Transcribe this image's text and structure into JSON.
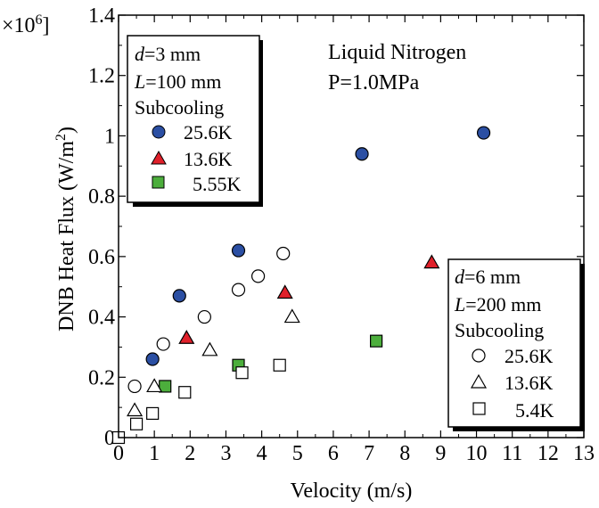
{
  "chart_data": {
    "type": "scatter",
    "xlabel": "Velocity  (m/s)",
    "ylabel": "DNB Heat Flux (W/m",
    "ylabel_sup": "2",
    "ylabel_close": ")",
    "y_multiplier_prefix": "×10",
    "y_multiplier_exp": "6",
    "y_multiplier_suffix": "]",
    "xlim": [
      0,
      13
    ],
    "ylim": [
      0,
      1.4
    ],
    "x_ticks": [
      "0",
      "1",
      "2",
      "3",
      "4",
      "5",
      "6",
      "7",
      "8",
      "9",
      "10",
      "11",
      "12",
      "13"
    ],
    "y_ticks": [
      "0",
      "0.2",
      "0.4",
      "0.6",
      "0.8",
      "1",
      "1.2",
      "1.4"
    ],
    "grid": false,
    "annotation": {
      "line1": "Liquid Nitrogen",
      "line2": "P=1.0MPa"
    },
    "legend_top_left": {
      "d_sym": "d",
      "d_val": "=3 mm",
      "l_sym": "L",
      "l_val": "=100 mm",
      "subtitle": "Subcooling",
      "entries": [
        "25.6K",
        "13.6K",
        "5.55K"
      ]
    },
    "legend_bottom_right": {
      "d_sym": "d",
      "d_val": "=6 mm",
      "l_sym": "L",
      "l_val": "=200 mm",
      "subtitle": "Subcooling",
      "entries": [
        "25.6K",
        "13.6K",
        "5.4K"
      ]
    },
    "series": [
      {
        "name": "25.6K",
        "marker": "circle",
        "filled": true,
        "color": "#2b4fa3",
        "points": [
          [
            0.95,
            0.26
          ],
          [
            1.7,
            0.47
          ],
          [
            3.35,
            0.62
          ],
          [
            6.8,
            0.94
          ],
          [
            10.2,
            1.01
          ]
        ]
      },
      {
        "name": "13.6K",
        "marker": "triangle",
        "filled": true,
        "color": "#e0202a",
        "points": [
          [
            1.9,
            0.33
          ],
          [
            4.65,
            0.48
          ],
          [
            8.75,
            0.58
          ]
        ]
      },
      {
        "name": "5.55K",
        "marker": "square",
        "filled": true,
        "color": "#4cae3c",
        "points": [
          [
            1.3,
            0.17
          ],
          [
            3.35,
            0.24
          ],
          [
            7.2,
            0.32
          ]
        ]
      },
      {
        "name": "25.6K",
        "marker": "circle",
        "filled": false,
        "color": "#000000",
        "points": [
          [
            0.45,
            0.17
          ],
          [
            1.25,
            0.31
          ],
          [
            2.4,
            0.4
          ],
          [
            3.35,
            0.49
          ],
          [
            3.9,
            0.535
          ],
          [
            4.6,
            0.61
          ]
        ]
      },
      {
        "name": "13.6K",
        "marker": "triangle",
        "filled": false,
        "color": "#000000",
        "points": [
          [
            0.45,
            0.09
          ],
          [
            1.0,
            0.17
          ],
          [
            2.55,
            0.29
          ],
          [
            4.85,
            0.4
          ]
        ]
      },
      {
        "name": "5.4K",
        "marker": "square",
        "filled": false,
        "color": "#000000",
        "points": [
          [
            0.0,
            0.0
          ],
          [
            0.5,
            0.045
          ],
          [
            0.95,
            0.08
          ],
          [
            1.85,
            0.15
          ],
          [
            3.45,
            0.215
          ],
          [
            4.5,
            0.24
          ]
        ]
      }
    ]
  }
}
